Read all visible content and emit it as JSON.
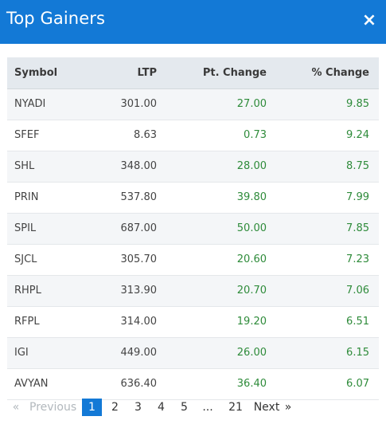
{
  "header": {
    "title": "Top Gainers",
    "close_glyph": "×"
  },
  "table": {
    "columns": [
      "Symbol",
      "LTP",
      "Pt. Change",
      "% Change"
    ],
    "rows": [
      {
        "symbol": "NYADI",
        "ltp": "301.00",
        "pt": "27.00",
        "pct": "9.85"
      },
      {
        "symbol": "SFEF",
        "ltp": "8.63",
        "pt": "0.73",
        "pct": "9.24"
      },
      {
        "symbol": "SHL",
        "ltp": "348.00",
        "pt": "28.00",
        "pct": "8.75"
      },
      {
        "symbol": "PRIN",
        "ltp": "537.80",
        "pt": "39.80",
        "pct": "7.99"
      },
      {
        "symbol": "SPIL",
        "ltp": "687.00",
        "pt": "50.00",
        "pct": "7.85"
      },
      {
        "symbol": "SJCL",
        "ltp": "305.70",
        "pt": "20.60",
        "pct": "7.23"
      },
      {
        "symbol": "RHPL",
        "ltp": "313.90",
        "pt": "20.70",
        "pct": "7.06"
      },
      {
        "symbol": "RFPL",
        "ltp": "314.00",
        "pt": "19.20",
        "pct": "6.51"
      },
      {
        "symbol": "IGI",
        "ltp": "449.00",
        "pt": "26.00",
        "pct": "6.15"
      },
      {
        "symbol": "AVYAN",
        "ltp": "636.40",
        "pt": "36.40",
        "pct": "6.07"
      }
    ]
  },
  "pagination": {
    "prev_arrow": "«",
    "prev_label": "Previous",
    "pages": [
      "1",
      "2",
      "3",
      "4",
      "5"
    ],
    "ellipsis": "...",
    "last_page": "21",
    "next_label": "Next",
    "next_arrow": "»",
    "current": "1"
  },
  "colors": {
    "header_bg": "#1379d6",
    "positive": "#2e8b3a",
    "active_page": "#1379d6"
  }
}
